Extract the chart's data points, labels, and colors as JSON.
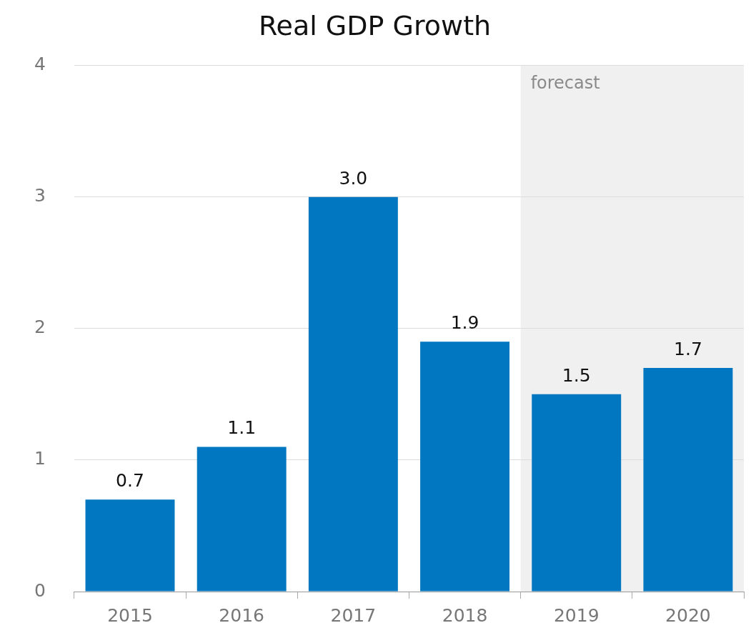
{
  "chart_data": {
    "type": "bar",
    "title": "Real GDP Growth",
    "categories": [
      "2015",
      "2016",
      "2017",
      "2018",
      "2019",
      "2020"
    ],
    "values": [
      0.7,
      1.1,
      3.0,
      1.9,
      1.5,
      1.7
    ],
    "value_labels": [
      "0.7",
      "1.1",
      "3.0",
      "1.9",
      "1.5",
      "1.7"
    ],
    "color": "#0077c0",
    "ylim": [
      0,
      4
    ],
    "yticks": [
      0,
      1,
      2,
      3,
      4
    ],
    "grid": "y",
    "legend": false,
    "bands": [
      {
        "axis": "x",
        "from": "2019",
        "to": "2020",
        "label": "forecast",
        "color": "#f0f0f0"
      }
    ]
  }
}
